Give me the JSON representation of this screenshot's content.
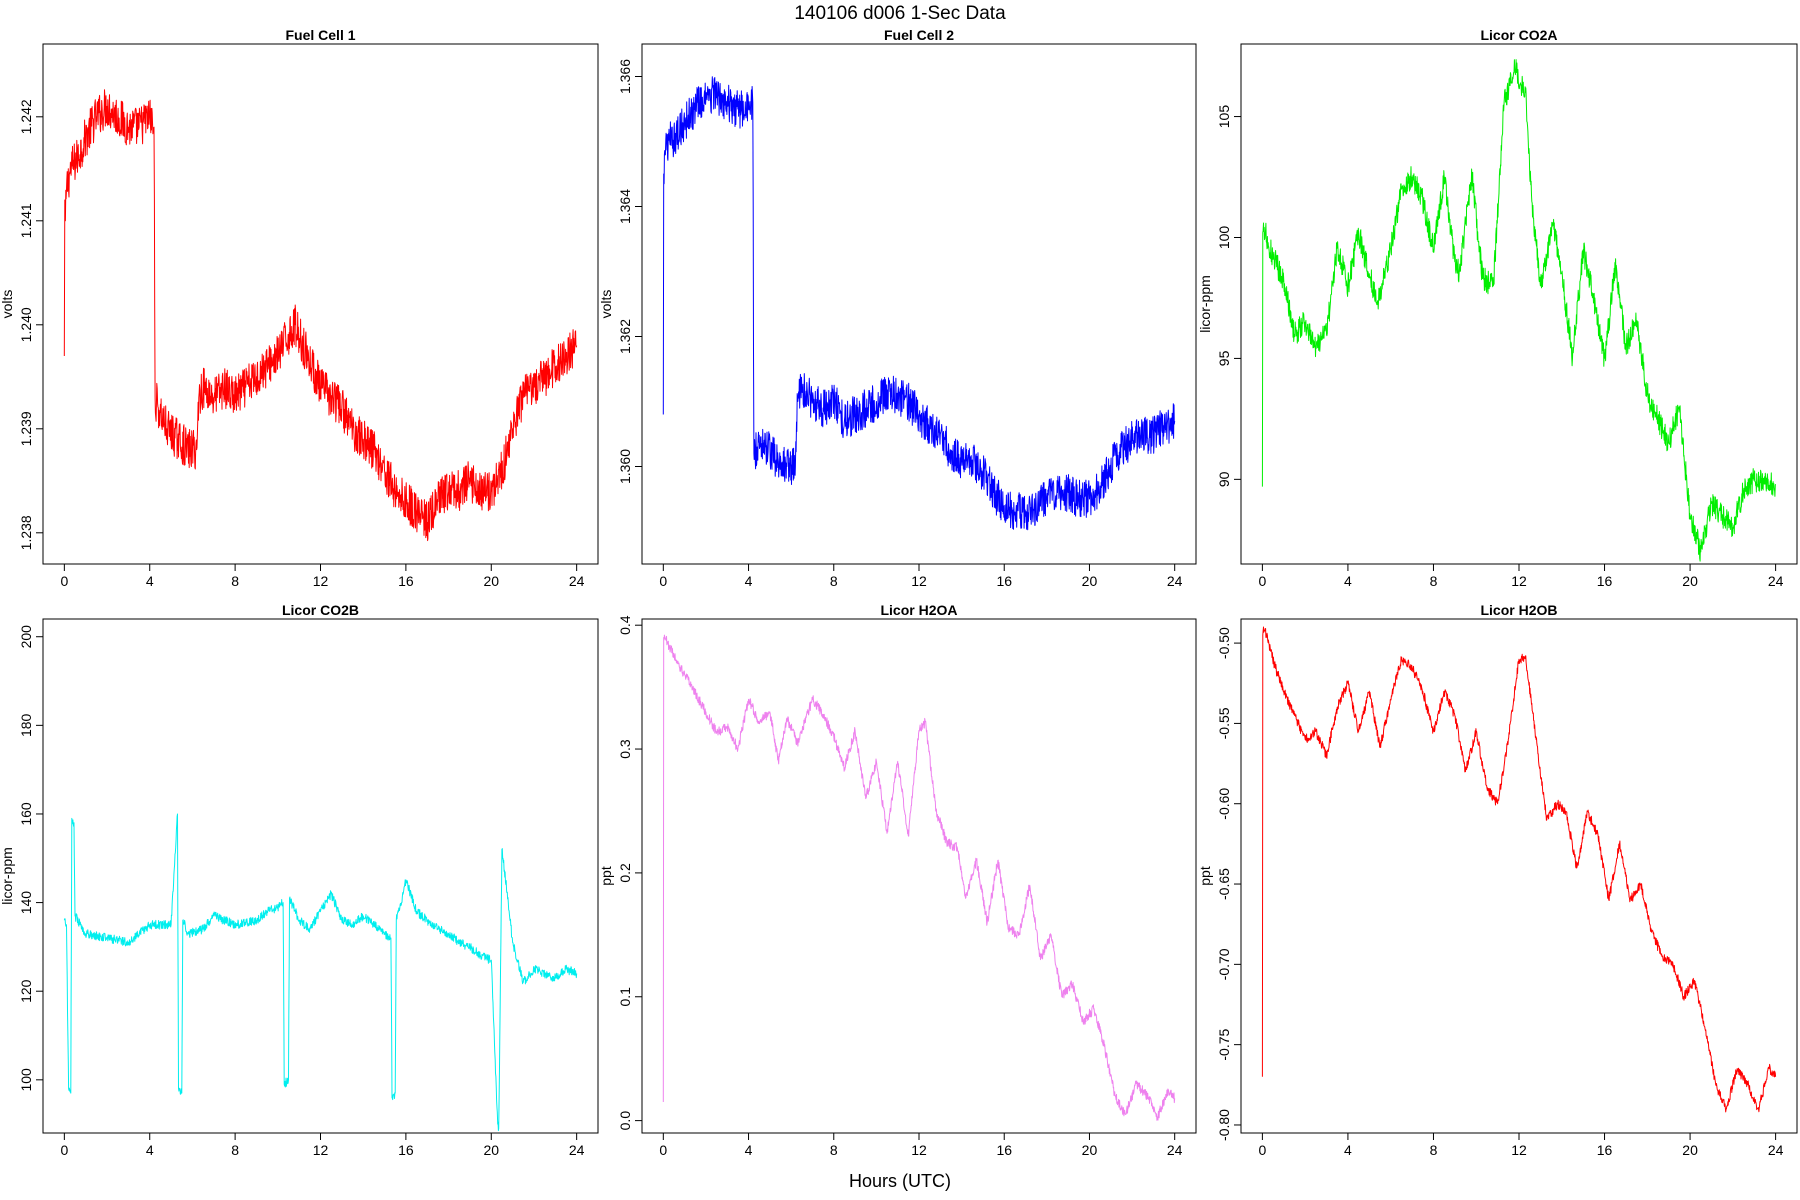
{
  "figure": {
    "title": "140106   d006   1-Sec Data",
    "xlabel": "Hours (UTC)"
  },
  "chart_data": [
    {
      "type": "line",
      "title": "Fuel Cell 1",
      "xlabel": "",
      "ylabel": "volts",
      "color": "#ff0000",
      "xlim": [
        -1,
        25
      ],
      "ylim": [
        1.2377,
        1.2427
      ],
      "xticks": [
        0,
        4,
        8,
        12,
        16,
        20,
        24
      ],
      "yticks": [
        1.238,
        1.239,
        1.24,
        1.241,
        1.242
      ],
      "ytick_labels": [
        "1.238",
        "1.239",
        "1.240",
        "1.241",
        "1.242"
      ],
      "noise": 0.0002,
      "x": [
        0.0,
        0.02,
        0.05,
        0.1,
        0.3,
        0.6,
        1.0,
        1.5,
        2.0,
        2.5,
        3.0,
        3.5,
        4.0,
        4.2,
        4.25,
        4.4,
        4.8,
        5.3,
        5.8,
        6.2,
        6.3,
        6.5,
        7.0,
        7.5,
        8.0,
        8.5,
        9.0,
        9.5,
        10.0,
        10.5,
        10.8,
        11.2,
        11.6,
        12.0,
        12.5,
        13.0,
        13.5,
        14.0,
        14.5,
        15.0,
        15.5,
        16.0,
        16.5,
        17.0,
        17.5,
        18.0,
        18.5,
        19.0,
        19.5,
        20.0,
        20.5,
        21.0,
        21.5,
        22.0,
        22.5,
        23.0,
        23.5,
        24.0
      ],
      "y": [
        1.2397,
        1.2412,
        1.241,
        1.2413,
        1.2415,
        1.2416,
        1.2418,
        1.242,
        1.2421,
        1.242,
        1.2419,
        1.2419,
        1.242,
        1.2419,
        1.2393,
        1.2392,
        1.239,
        1.2389,
        1.2388,
        1.2388,
        1.2393,
        1.2394,
        1.2393,
        1.2394,
        1.2393,
        1.2394,
        1.2395,
        1.2396,
        1.2397,
        1.2399,
        1.24,
        1.2398,
        1.2396,
        1.2394,
        1.2393,
        1.2392,
        1.239,
        1.2389,
        1.2388,
        1.2386,
        1.2384,
        1.2383,
        1.2382,
        1.2381,
        1.2383,
        1.2384,
        1.2384,
        1.2385,
        1.2384,
        1.2384,
        1.2386,
        1.239,
        1.2393,
        1.2394,
        1.2395,
        1.2396,
        1.2397,
        1.2398
      ]
    },
    {
      "type": "line",
      "title": "Fuel Cell 2",
      "xlabel": "",
      "ylabel": "volts",
      "color": "#0000ff",
      "xlim": [
        -1,
        25
      ],
      "ylim": [
        1.3585,
        1.3665
      ],
      "xticks": [
        0,
        4,
        8,
        12,
        16,
        20,
        24
      ],
      "yticks": [
        1.36,
        1.362,
        1.364,
        1.366
      ],
      "ytick_labels": [
        "1.360",
        "1.362",
        "1.364",
        "1.366"
      ],
      "noise": 0.0003,
      "x": [
        0.0,
        0.02,
        0.05,
        0.1,
        0.3,
        0.6,
        1.0,
        1.5,
        2.0,
        2.5,
        3.0,
        3.5,
        4.0,
        4.2,
        4.25,
        4.4,
        4.8,
        5.3,
        5.8,
        6.2,
        6.3,
        6.5,
        7.0,
        7.5,
        8.0,
        8.5,
        9.0,
        9.5,
        10.0,
        10.5,
        11.0,
        11.5,
        12.0,
        12.5,
        13.0,
        13.5,
        14.0,
        14.5,
        15.0,
        15.5,
        16.0,
        16.5,
        17.0,
        17.5,
        18.0,
        18.5,
        19.0,
        19.5,
        20.0,
        20.5,
        21.0,
        21.5,
        22.0,
        22.5,
        23.0,
        23.5,
        24.0
      ],
      "y": [
        1.3608,
        1.3645,
        1.3648,
        1.3648,
        1.365,
        1.3651,
        1.3653,
        1.3655,
        1.3657,
        1.3657,
        1.3656,
        1.3655,
        1.3655,
        1.3656,
        1.3602,
        1.3603,
        1.3603,
        1.3601,
        1.36,
        1.36,
        1.361,
        1.3612,
        1.361,
        1.3609,
        1.361,
        1.3607,
        1.3608,
        1.3609,
        1.361,
        1.3611,
        1.3611,
        1.361,
        1.3608,
        1.3606,
        1.3605,
        1.3602,
        1.3601,
        1.3601,
        1.3599,
        1.3596,
        1.3594,
        1.3593,
        1.3593,
        1.3594,
        1.3595,
        1.3596,
        1.3596,
        1.3595,
        1.3595,
        1.3597,
        1.36,
        1.3603,
        1.3604,
        1.3605,
        1.3605,
        1.3606,
        1.3607
      ]
    },
    {
      "type": "line",
      "title": "Licor CO2A",
      "xlabel": "",
      "ylabel": "licor-ppm",
      "color": "#00ee00",
      "xlim": [
        -1,
        25
      ],
      "ylim": [
        86.5,
        108.0
      ],
      "xticks": [
        0,
        4,
        8,
        12,
        16,
        20,
        24
      ],
      "yticks": [
        90,
        95,
        100,
        105
      ],
      "ytick_labels": [
        "90",
        "95",
        "100",
        "105"
      ],
      "noise": 0.5,
      "x": [
        0.0,
        0.02,
        0.05,
        0.3,
        0.6,
        1.0,
        1.5,
        2.0,
        2.5,
        3.0,
        3.5,
        4.0,
        4.5,
        5.0,
        5.4,
        6.0,
        6.5,
        7.0,
        7.5,
        8.0,
        8.5,
        9.0,
        9.2,
        9.8,
        10.3,
        10.8,
        11.3,
        11.8,
        12.3,
        12.6,
        13.0,
        13.6,
        14.0,
        14.5,
        15.0,
        15.5,
        16.0,
        16.5,
        17.0,
        17.5,
        18.0,
        18.5,
        19.0,
        19.5,
        20.0,
        20.5,
        21.0,
        21.5,
        22.0,
        22.5,
        23.0,
        23.5,
        24.0
      ],
      "y": [
        89.7,
        100.2,
        100.6,
        99.6,
        99.0,
        98.2,
        96.0,
        96.5,
        95.5,
        96.0,
        99.6,
        98.0,
        100.2,
        98.5,
        97.3,
        99.5,
        102.0,
        102.5,
        101.5,
        99.5,
        102.5,
        99.0,
        98.5,
        102.5,
        98.3,
        98.0,
        105.5,
        107.0,
        106.0,
        101.5,
        98.0,
        100.5,
        98.5,
        95.0,
        99.5,
        97.5,
        95.0,
        98.8,
        95.5,
        96.5,
        93.5,
        92.5,
        91.5,
        93.0,
        88.5,
        87.0,
        89.0,
        88.5,
        88.0,
        89.5,
        90.0,
        89.8,
        89.8
      ]
    },
    {
      "type": "line",
      "title": "Licor CO2B",
      "xlabel": "",
      "ylabel": "licor-ppm",
      "color": "#00eeee",
      "xlim": [
        -1,
        25
      ],
      "ylim": [
        88,
        204
      ],
      "xticks": [
        0,
        4,
        8,
        12,
        16,
        20,
        24
      ],
      "yticks": [
        100,
        120,
        140,
        160,
        180,
        200
      ],
      "ytick_labels": [
        "100",
        "120",
        "140",
        "160",
        "180",
        "200"
      ],
      "noise": 1.0,
      "x": [
        0.0,
        0.1,
        0.2,
        0.3,
        0.35,
        0.45,
        0.5,
        1.0,
        2.0,
        3.0,
        4.0,
        5.0,
        5.3,
        5.35,
        5.5,
        5.55,
        5.8,
        6.5,
        7.0,
        8.0,
        9.0,
        9.5,
        10.0,
        10.25,
        10.3,
        10.5,
        10.55,
        11.0,
        11.5,
        12.0,
        12.5,
        13.0,
        13.5,
        14.0,
        14.5,
        15.0,
        15.3,
        15.35,
        15.5,
        15.55,
        15.8,
        16.0,
        16.5,
        17.0,
        17.5,
        18.0,
        18.5,
        19.0,
        19.5,
        20.0,
        20.3,
        20.35,
        20.5,
        20.55,
        20.8,
        21.0,
        21.5,
        22.0,
        22.5,
        23.0,
        23.5,
        24.0
      ],
      "y": [
        136,
        135,
        98,
        97,
        159,
        158,
        137,
        133,
        132,
        131,
        135,
        135,
        160,
        98,
        97,
        136,
        133,
        134,
        137,
        135,
        136,
        138,
        139,
        140,
        99,
        100,
        141,
        136,
        134,
        138,
        142,
        136,
        135,
        137,
        135,
        133,
        132,
        96,
        97,
        136,
        140,
        145,
        138,
        136,
        134,
        133,
        131,
        130,
        128,
        127,
        90,
        89,
        152,
        150,
        140,
        131,
        122,
        125,
        124,
        123,
        125,
        124
      ]
    },
    {
      "type": "line",
      "title": "Licor H2OA",
      "xlabel": "",
      "ylabel": "ppt",
      "color": "#ee82ee",
      "xlim": [
        -1,
        25
      ],
      "ylim": [
        -0.01,
        0.405
      ],
      "xticks": [
        0,
        4,
        8,
        12,
        16,
        20,
        24
      ],
      "yticks": [
        0.0,
        0.1,
        0.2,
        0.3,
        0.4
      ],
      "ytick_labels": [
        "0.0",
        "0.1",
        "0.2",
        "0.3",
        "0.4"
      ],
      "noise": 0.004,
      "x": [
        0.0,
        0.02,
        0.05,
        0.3,
        0.6,
        1.0,
        1.5,
        2.0,
        2.5,
        3.0,
        3.5,
        4.0,
        4.5,
        5.0,
        5.4,
        5.8,
        6.3,
        7.0,
        7.5,
        8.0,
        8.5,
        9.0,
        9.5,
        10.0,
        10.5,
        11.0,
        11.5,
        12.0,
        12.3,
        12.8,
        13.3,
        13.8,
        14.2,
        14.7,
        15.2,
        15.7,
        16.2,
        16.7,
        17.2,
        17.7,
        18.2,
        18.7,
        19.2,
        19.7,
        20.2,
        20.7,
        21.2,
        21.7,
        22.2,
        22.7,
        23.2,
        23.7,
        24.0
      ],
      "y": [
        0.015,
        0.39,
        0.392,
        0.382,
        0.372,
        0.36,
        0.345,
        0.33,
        0.313,
        0.318,
        0.3,
        0.34,
        0.322,
        0.33,
        0.29,
        0.325,
        0.305,
        0.34,
        0.328,
        0.31,
        0.285,
        0.315,
        0.26,
        0.29,
        0.232,
        0.29,
        0.23,
        0.315,
        0.322,
        0.25,
        0.225,
        0.22,
        0.18,
        0.21,
        0.16,
        0.21,
        0.155,
        0.15,
        0.19,
        0.13,
        0.15,
        0.1,
        0.11,
        0.08,
        0.09,
        0.06,
        0.02,
        0.005,
        0.03,
        0.02,
        0.003,
        0.025,
        0.018
      ]
    },
    {
      "type": "line",
      "title": "Licor H2OB",
      "xlabel": "",
      "ylabel": "ppt",
      "color": "#ff0000",
      "xlim": [
        -1,
        25
      ],
      "ylim": [
        -0.805,
        -0.485
      ],
      "xticks": [
        0,
        4,
        8,
        12,
        16,
        20,
        24
      ],
      "yticks": [
        -0.8,
        -0.75,
        -0.7,
        -0.65,
        -0.6,
        -0.55,
        -0.5
      ],
      "ytick_labels": [
        "-0.80",
        "-0.75",
        "-0.70",
        "-0.65",
        "-0.60",
        "-0.55",
        "-0.50"
      ],
      "noise": 0.003,
      "x": [
        0.0,
        0.02,
        0.05,
        0.3,
        0.6,
        1.0,
        1.5,
        2.0,
        2.5,
        3.0,
        3.5,
        4.0,
        4.5,
        5.0,
        5.5,
        6.0,
        6.5,
        7.0,
        7.5,
        8.0,
        8.5,
        9.0,
        9.5,
        10.0,
        10.5,
        11.0,
        11.5,
        12.0,
        12.3,
        12.8,
        13.3,
        13.8,
        14.2,
        14.7,
        15.2,
        15.7,
        16.2,
        16.7,
        17.2,
        17.7,
        18.2,
        18.7,
        19.2,
        19.7,
        20.2,
        20.7,
        21.2,
        21.7,
        22.2,
        22.7,
        23.2,
        23.7,
        24.0
      ],
      "y": [
        -0.77,
        -0.495,
        -0.49,
        -0.5,
        -0.515,
        -0.53,
        -0.545,
        -0.56,
        -0.555,
        -0.57,
        -0.54,
        -0.525,
        -0.555,
        -0.53,
        -0.565,
        -0.535,
        -0.51,
        -0.515,
        -0.53,
        -0.555,
        -0.53,
        -0.545,
        -0.58,
        -0.555,
        -0.59,
        -0.6,
        -0.56,
        -0.51,
        -0.508,
        -0.56,
        -0.61,
        -0.6,
        -0.605,
        -0.64,
        -0.605,
        -0.62,
        -0.66,
        -0.625,
        -0.66,
        -0.65,
        -0.68,
        -0.695,
        -0.7,
        -0.72,
        -0.71,
        -0.74,
        -0.775,
        -0.79,
        -0.765,
        -0.775,
        -0.79,
        -0.765,
        -0.77
      ]
    }
  ]
}
